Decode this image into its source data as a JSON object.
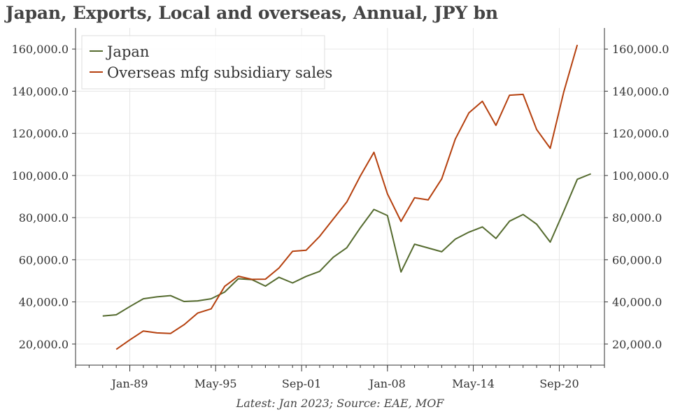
{
  "chart_data": {
    "type": "line",
    "title": "Japan, Exports, Local and overseas, Annual, JPY bn",
    "footer": "Latest: Jan 2023; Source: EAE, MOF",
    "xlim": [
      1985.0,
      2024.0
    ],
    "ylim": [
      10000,
      170000
    ],
    "x_ticks": [
      {
        "label": "Jan-89",
        "value": 1989.0
      },
      {
        "label": "May-95",
        "value": 1995.33
      },
      {
        "label": "Sep-01",
        "value": 2001.67
      },
      {
        "label": "Jan-08",
        "value": 2008.0
      },
      {
        "label": "May-14",
        "value": 2014.33
      },
      {
        "label": "Sep-20",
        "value": 2020.67
      }
    ],
    "y_ticks_left": [
      "20,000.0",
      "40,000.0",
      "60,000.0",
      "80,000.0",
      "100,000.0",
      "120,000.0",
      "140,000.0",
      "160,000.0"
    ],
    "y_ticks_right": [
      "20,000.0",
      "40,000.0",
      "60,000.0",
      "80,000.0",
      "100,000.0",
      "120,000.0",
      "140,000.0",
      "160,000.0"
    ],
    "legend_position": "top-left",
    "series": [
      {
        "name": "Japan",
        "color": "#556b2f",
        "points": [
          [
            1987,
            33300
          ],
          [
            1988,
            33900
          ],
          [
            1989,
            37800
          ],
          [
            1990,
            41500
          ],
          [
            1991,
            42400
          ],
          [
            1992,
            43000
          ],
          [
            1993,
            40200
          ],
          [
            1994,
            40500
          ],
          [
            1995,
            41500
          ],
          [
            1996,
            44700
          ],
          [
            1997,
            51000
          ],
          [
            1998,
            50600
          ],
          [
            1999,
            47500
          ],
          [
            2000,
            51700
          ],
          [
            2001,
            49000
          ],
          [
            2002,
            52100
          ],
          [
            2003,
            54500
          ],
          [
            2004,
            61200
          ],
          [
            2005,
            65700
          ],
          [
            2006,
            75200
          ],
          [
            2007,
            83900
          ],
          [
            2008,
            81000
          ],
          [
            2009,
            54200
          ],
          [
            2010,
            67400
          ],
          [
            2011,
            65600
          ],
          [
            2012,
            63800
          ],
          [
            2013,
            69800
          ],
          [
            2014,
            73100
          ],
          [
            2015,
            75600
          ],
          [
            2016,
            70100
          ],
          [
            2017,
            78300
          ],
          [
            2018,
            81500
          ],
          [
            2019,
            76900
          ],
          [
            2020,
            68400
          ],
          [
            2021,
            83000
          ],
          [
            2022,
            98200
          ],
          [
            2023,
            100800
          ]
        ]
      },
      {
        "name": "Overseas mfg subsidiary sales",
        "color": "#b5400e",
        "points": [
          [
            1988,
            17500
          ],
          [
            1989,
            22000
          ],
          [
            1990,
            26200
          ],
          [
            1991,
            25300
          ],
          [
            1992,
            25000
          ],
          [
            1993,
            29200
          ],
          [
            1994,
            34700
          ],
          [
            1995,
            36700
          ],
          [
            1996,
            47400
          ],
          [
            1997,
            52200
          ],
          [
            1998,
            50700
          ],
          [
            1999,
            50800
          ],
          [
            2000,
            56100
          ],
          [
            2001,
            64000
          ],
          [
            2002,
            64500
          ],
          [
            2003,
            71100
          ],
          [
            2004,
            79300
          ],
          [
            2005,
            87400
          ],
          [
            2006,
            99800
          ],
          [
            2007,
            111000
          ],
          [
            2008,
            91300
          ],
          [
            2009,
            78200
          ],
          [
            2010,
            89400
          ],
          [
            2011,
            88400
          ],
          [
            2012,
            98400
          ],
          [
            2013,
            117300
          ],
          [
            2014,
            129700
          ],
          [
            2015,
            135200
          ],
          [
            2016,
            123800
          ],
          [
            2017,
            138100
          ],
          [
            2018,
            138500
          ],
          [
            2019,
            121800
          ],
          [
            2020,
            112900
          ],
          [
            2021,
            139600
          ],
          [
            2022,
            162000
          ]
        ]
      }
    ]
  }
}
